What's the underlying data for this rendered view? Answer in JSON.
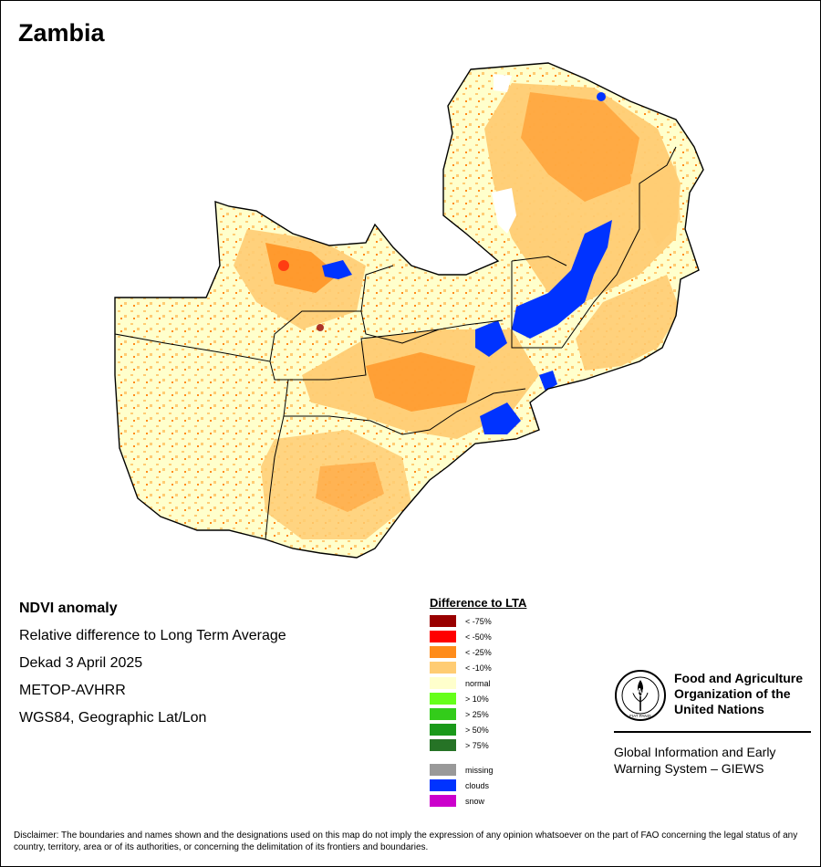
{
  "map": {
    "title": "Zambia",
    "legend_position": "bottom-center"
  },
  "info": {
    "product": "NDVI anomaly",
    "description": "Relative difference to Long Term Average",
    "period": "Dekad 3 April 2025",
    "sensor": "METOP-AVHRR",
    "projection": "WGS84, Geographic Lat/Lon"
  },
  "legend": {
    "title": "Difference to LTA",
    "classes": [
      {
        "label": "< -75%",
        "color": "#990000"
      },
      {
        "label": "< -50%",
        "color": "#ff0000"
      },
      {
        "label": "< -25%",
        "color": "#ff8c1a"
      },
      {
        "label": "< -10%",
        "color": "#ffcc73"
      },
      {
        "label": "normal",
        "color": "#ffffcc"
      },
      {
        "label": "> 10%",
        "color": "#66ff1a"
      },
      {
        "label": "> 25%",
        "color": "#33cc1a"
      },
      {
        "label": "> 50%",
        "color": "#1a991a"
      },
      {
        "label": "> 75%",
        "color": "#267326"
      }
    ],
    "special": [
      {
        "label": "missing",
        "color": "#999999"
      },
      {
        "label": "clouds",
        "color": "#0033ff"
      },
      {
        "label": "snow",
        "color": "#cc00cc"
      }
    ]
  },
  "organization": {
    "logo_letters": "FAO",
    "logo_motto": "FIAT PANIS",
    "name_line1": "Food and Agriculture",
    "name_line2": "Organization of the",
    "name_line3": "United Nations",
    "system_line1": "Global Information and Early",
    "system_line2": "Warning System – GIEWS"
  },
  "disclaimer": "Disclaimer: The boundaries and names shown and the designations used on this map do not imply the expression of any opinion whatsoever on the part of FAO concerning the legal status of any country, territory, area or of its authorities, or concerning the delimitation of its frontiers and boundaries."
}
